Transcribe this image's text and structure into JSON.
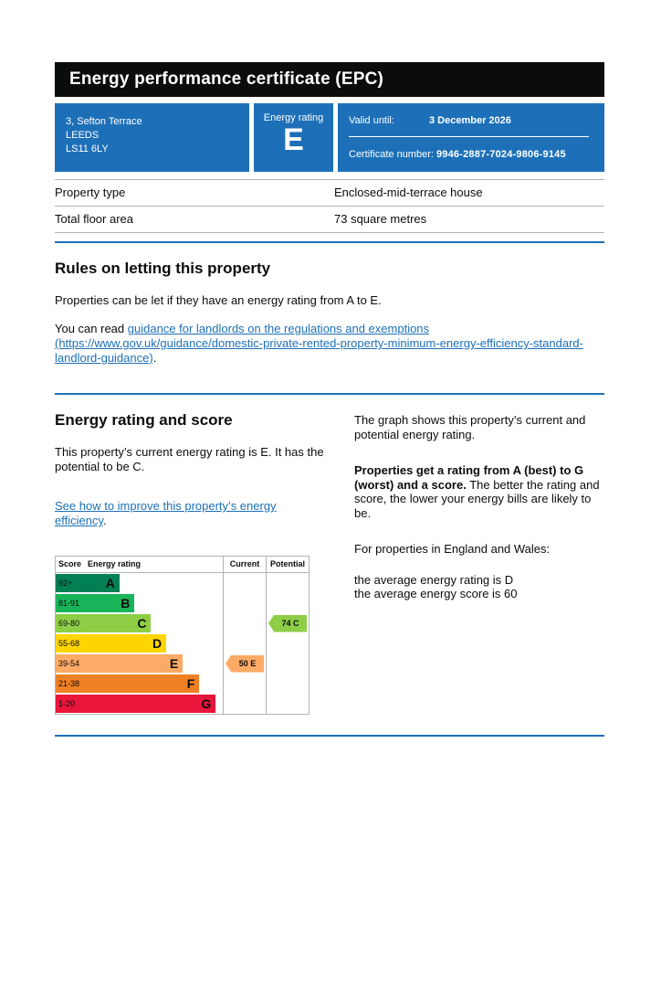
{
  "header": {
    "title": "Energy performance certificate (EPC)"
  },
  "summary": {
    "address": {
      "line1": "3, Sefton Terrace",
      "line2": "LEEDS",
      "line3": "LS11 6LY"
    },
    "energy_rating_label": "Energy rating",
    "energy_rating": "E",
    "valid_until_label": "Valid until:",
    "valid_until_date": "3 December 2026",
    "certificate_number_label": "Certificate number: ",
    "certificate_number": "9946-2887-7024-9806-9145"
  },
  "property_details": {
    "rows": [
      {
        "label": "Property type",
        "value": "Enclosed-mid-terrace house"
      },
      {
        "label": "Total floor area",
        "value": "73 square metres"
      }
    ]
  },
  "rules_section": {
    "heading": "Rules on letting this property",
    "paragraph": "Properties can be let if they have an energy rating from A to E.",
    "guidance_prefix": "You can read ",
    "guidance_link": "guidance for landlords on the regulations and exemptions (https://www.gov.uk/guidance/domestic-private-rented-property-minimum-energy-efficiency-standard-landlord-guidance)",
    "guidance_suffix": "."
  },
  "rating_section": {
    "heading": "Energy rating and score",
    "paragraph": "This property’s current energy rating is E. It has the potential to be C.",
    "improve_link": "See how to improve this property’s energy efficiency",
    "improve_suffix": "."
  },
  "graph_info": {
    "paragraph1": "The graph shows this property’s current and potential energy rating.",
    "paragraph2_bold": "Properties get a rating from A (best) to G (worst) and a score.",
    "paragraph2_rest": " The better the rating and score, the lower your energy bills are likely to be.",
    "paragraph3": "For properties in England and Wales:",
    "average_rating_line": "the average energy rating is D",
    "average_score_line": "the average energy score is 60"
  },
  "colors": {
    "accent_blue": "#1d70b8",
    "header_black": "#0b0c0c",
    "border_grey": "#b1b4b6"
  },
  "chart_data": {
    "type": "table",
    "title": "Energy efficiency rating bands",
    "columns": {
      "score": "Score",
      "rating": "Energy rating",
      "current": "Current",
      "potential": "Potential"
    },
    "bands": [
      {
        "score": "92+",
        "letter": "A",
        "color": "#008054",
        "width_pct": 25
      },
      {
        "score": "81-91",
        "letter": "B",
        "color": "#19b459",
        "width_pct": 36
      },
      {
        "score": "69-80",
        "letter": "C",
        "color": "#8dce46",
        "width_pct": 48
      },
      {
        "score": "55-68",
        "letter": "D",
        "color": "#ffd500",
        "width_pct": 59
      },
      {
        "score": "39-54",
        "letter": "E",
        "color": "#fcaa65",
        "width_pct": 71
      },
      {
        "score": "21-38",
        "letter": "F",
        "color": "#ef8023",
        "width_pct": 83
      },
      {
        "score": "1-20",
        "letter": "G",
        "color": "#e9153b",
        "width_pct": 95
      }
    ],
    "current": {
      "value": 50,
      "letter": "E",
      "band_index": 4,
      "color": "#fcaa65"
    },
    "potential": {
      "value": 74,
      "letter": "C",
      "band_index": 2,
      "color": "#8dce46"
    }
  }
}
